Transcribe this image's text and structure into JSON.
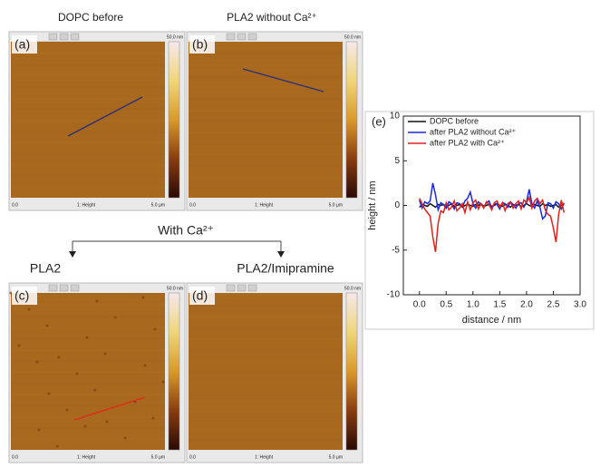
{
  "panels": [
    {
      "label": "(a)",
      "title": "DOPC before",
      "scale": "50.0 nm",
      "x_start": "0.0",
      "channel": "1: Height",
      "x_end": "5.0 µm"
    },
    {
      "label": "(b)",
      "title": "PLA2 without Ca²⁺",
      "scale": "50.0 nm",
      "x_start": "0.0",
      "channel": "1: Height",
      "x_end": "5.0 µm"
    },
    {
      "label": "(c)",
      "title": "PLA2",
      "scale": "50.0 nm",
      "x_start": "0.0",
      "channel": "1: Height",
      "x_end": "5.0 µm"
    },
    {
      "label": "(d)",
      "title": "PLA2/Imipramine",
      "scale": "50.0 nm",
      "x_start": "0.0",
      "channel": "1: Height",
      "x_end": "5.0 µm"
    }
  ],
  "with_ca": "With Ca²⁺",
  "chart_label": "(e)",
  "chart_data": {
    "type": "line",
    "x_label": "distance / nm",
    "y_label": "height / nm",
    "x": [
      0,
      0.05,
      0.1,
      0.15,
      0.2,
      0.25,
      0.3,
      0.35,
      0.4,
      0.45,
      0.5,
      0.55,
      0.6,
      0.65,
      0.7,
      0.75,
      0.8,
      0.85,
      0.9,
      0.95,
      1.0,
      1.05,
      1.1,
      1.15,
      1.2,
      1.25,
      1.3,
      1.35,
      1.4,
      1.45,
      1.5,
      1.55,
      1.6,
      1.65,
      1.7,
      1.75,
      1.8,
      1.85,
      1.9,
      1.95,
      2.0,
      2.05,
      2.1,
      2.15,
      2.2,
      2.25,
      2.3,
      2.35,
      2.4,
      2.45,
      2.5,
      2.55,
      2.6,
      2.65,
      2.7
    ],
    "series": [
      {
        "name": "DOPC before",
        "color": "#111111",
        "values": [
          -0.2,
          0.1,
          0.0,
          -0.1,
          0.2,
          0.0,
          -0.2,
          0.1,
          0.0,
          0.1,
          -0.1,
          0.0,
          0.2,
          -0.1,
          0.0,
          0.1,
          -0.2,
          0.0,
          0.1,
          0.0,
          -0.1,
          0.1,
          0.0,
          0.2,
          -0.1,
          0.0,
          0.1,
          -0.1,
          0.0,
          0.2,
          0.0,
          -0.1,
          0.1,
          0.0,
          -0.2,
          0.1,
          0.0,
          0.1,
          -0.1,
          0.0,
          0.2,
          0.0,
          -0.1,
          0.1,
          0.0,
          -0.1,
          0.2,
          0.0,
          0.1,
          -0.1,
          0.0,
          0.1,
          -0.2,
          0.0,
          0.1
        ]
      },
      {
        "name": "after PLA2 without Ca²⁺",
        "color": "#1a2ad6",
        "values": [
          0.6,
          -0.3,
          0.4,
          0.2,
          0.5,
          2.5,
          1.2,
          -0.5,
          0.3,
          0.1,
          -0.3,
          0.4,
          0.2,
          -0.4,
          0.3,
          0.2,
          -0.2,
          0.5,
          0.8,
          1.5,
          0.2,
          -0.3,
          0.4,
          0.1,
          -0.2,
          0.3,
          0.5,
          -0.3,
          0.2,
          0.1,
          -0.4,
          0.3,
          0.2,
          -0.2,
          0.4,
          0.1,
          -0.3,
          0.2,
          0.3,
          -0.2,
          0.4,
          1.8,
          0.2,
          -0.3,
          0.5,
          -0.2,
          -1.5,
          -1.2,
          0.3,
          0.2,
          -0.3,
          0.4,
          0.2,
          -0.4,
          0.3
        ]
      },
      {
        "name": "after PLA2 with Ca²⁺",
        "color": "#e0201c",
        "values": [
          0.8,
          0.2,
          -0.4,
          -0.8,
          -1.2,
          -3.5,
          -5.2,
          -2.0,
          -0.6,
          -0.8,
          0.3,
          -0.5,
          -0.2,
          0.5,
          -0.6,
          -0.3,
          0.2,
          -0.8,
          0.4,
          -0.5,
          0.3,
          0.6,
          -0.4,
          0.2,
          -0.3,
          0.4,
          0.1,
          -0.5,
          0.3,
          0.5,
          -0.2,
          0.3,
          -0.6,
          0.2,
          0.4,
          -0.3,
          0.2,
          0.5,
          -0.4,
          0.6,
          0.3,
          0.9,
          -0.3,
          0.5,
          0.8,
          0.2,
          0.6,
          -0.5,
          -1.0,
          -1.2,
          -2.5,
          -4.1,
          -1.0,
          0.6,
          -0.8
        ]
      }
    ],
    "xlim": [
      -0.3,
      3.0
    ],
    "xticks": [
      {
        "value": 0,
        "label": "0.0"
      },
      0.5,
      {
        "value": 1,
        "label": "1.0"
      },
      1.5,
      {
        "value": 2,
        "label": "2.0"
      },
      2.5,
      {
        "value": 3,
        "label": "3.0"
      }
    ],
    "ylim": [
      -10,
      10
    ],
    "yticks": [
      -10,
      -5,
      0,
      5,
      10
    ],
    "legend": "upper left"
  }
}
